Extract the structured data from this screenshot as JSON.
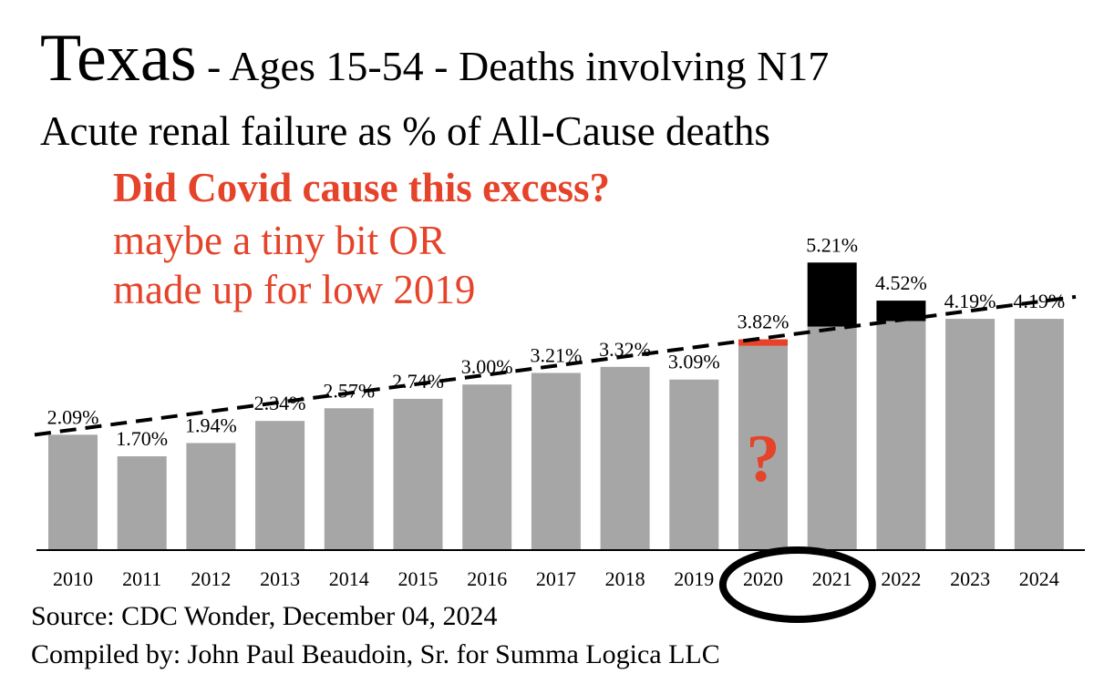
{
  "title": {
    "main": "Texas",
    "rest": " - Ages 15-54 - Deaths involving N17"
  },
  "subtitle": "Acute renal failure as % of All-Cause deaths",
  "annotation": {
    "line1": "Did Covid cause this excess?",
    "line2": "maybe a tiny bit OR",
    "line3": "made up for low 2019",
    "question_mark": "?"
  },
  "source": "Source:  CDC Wonder, December 04, 2024",
  "compiled": "Compiled by:  John Paul Beaudoin, Sr. for Summa Logica LLC",
  "colors": {
    "bar": "#a6a6a6",
    "excess": "#000000",
    "covid_excess": "#e5432a",
    "annotation": "#e5432a",
    "trend": "#000000"
  },
  "chart_data": {
    "type": "bar",
    "categories": [
      "2010",
      "2011",
      "2012",
      "2013",
      "2014",
      "2015",
      "2016",
      "2017",
      "2018",
      "2019",
      "2020",
      "2021",
      "2022",
      "2023",
      "2024"
    ],
    "values": [
      2.09,
      1.7,
      1.94,
      2.34,
      2.57,
      2.74,
      3.0,
      3.21,
      3.32,
      3.09,
      3.82,
      5.21,
      4.52,
      4.19,
      4.19
    ],
    "labels": [
      "2.09%",
      "1.70%",
      "1.94%",
      "2.34%",
      "2.57%",
      "2.74%",
      "3.00%",
      "3.21%",
      "3.32%",
      "3.09%",
      "3.82%",
      "5.21%",
      "4.52%",
      "4.19%",
      "4.19%"
    ],
    "baseline": [
      null,
      null,
      null,
      null,
      null,
      null,
      null,
      null,
      null,
      null,
      3.7,
      4.05,
      4.15,
      null,
      null
    ],
    "trend": {
      "start": 2.09,
      "end": 4.59,
      "style": "dashed"
    },
    "highlighted_categories": [
      "2020",
      "2021"
    ],
    "ylim": [
      0,
      6.2
    ],
    "grid": false
  }
}
